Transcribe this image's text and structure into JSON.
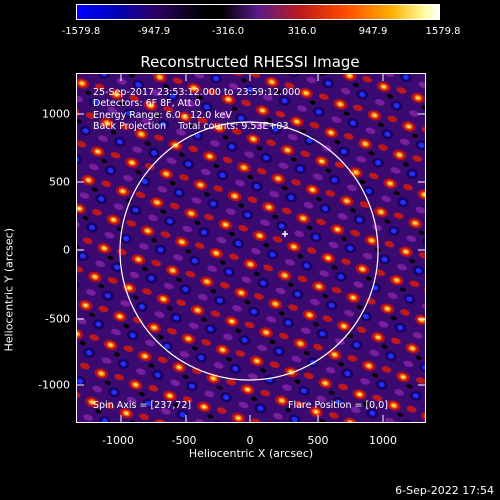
{
  "colorbar": {
    "ticks": [
      "-1579.8",
      "-947.9",
      "-316.0",
      "316.0",
      "947.9",
      "1579.8"
    ]
  },
  "title": "Reconstructed RHESSI Image",
  "annotations": {
    "line1": "25-Sep-2017 23:53:12.000 to 23:59:12.000",
    "line2": "Detectors: 6F 8F, Att 0",
    "line3": "Energy Range: 6.0 - 12.0 keV",
    "line4": "Back Projection    Total counts: 9.53E+03",
    "spin_axis": "Spin Axis = [237,72]",
    "flare_position": "Flare Position = [0,0]"
  },
  "axes": {
    "xlabel": "Heliocentric X (arcsec)",
    "ylabel": "Heliocentric Y (arcsec)",
    "xticks": [
      "-1000",
      "-500",
      "0",
      "500",
      "1000"
    ],
    "yticks": [
      "1000",
      "500",
      "0",
      "-500",
      "-1000"
    ]
  },
  "timestamp": "6-Sep-2022 17:54"
}
